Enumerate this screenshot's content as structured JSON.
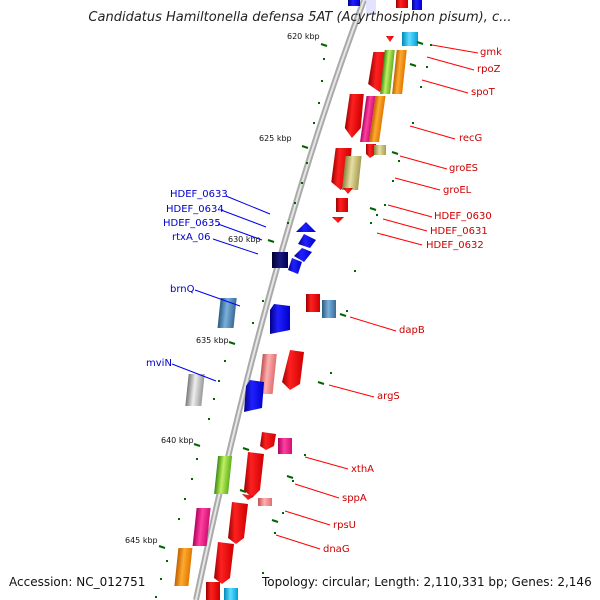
{
  "title": "Candidatus Hamiltonella defensa 5AT (Acyrthosiphon pisum), c...",
  "accession_label": "Accession:",
  "accession": "NC_012751",
  "topology_label": "Topology:",
  "topology": "circular;",
  "length_label": "Length:",
  "length": "2,110,331 bp;",
  "genes_label": "Genes:",
  "genes": "2,146",
  "ticks": [
    "620 kbp",
    "625 kbp",
    "630 kbp",
    "635 kbp",
    "640 kbp",
    "645 kbp"
  ],
  "genes_right": [
    "gmk",
    "rpoZ",
    "spoT",
    "recG",
    "groES",
    "groEL",
    "HDEF_0630",
    "HDEF_0631",
    "HDEF_0632",
    "dapB",
    "argS",
    "xthA",
    "sppA",
    "rpsU",
    "dnaG"
  ],
  "genes_left": [
    "HDEF_0633",
    "HDEF_0634",
    "HDEF_0635",
    "rtxA_06",
    "brnQ",
    "mviN"
  ],
  "colors": {
    "red": "#ff0000",
    "blue": "#0000ee",
    "navy": "#000066",
    "steel": "#4682b4",
    "pink": "#ff1493",
    "orange": "#ff8c00",
    "green": "#66cc33",
    "khaki": "#bdb76b",
    "light_red": "#f08080",
    "gray": "#aaaaaa",
    "cyan": "#00bfff",
    "tick": "#006400",
    "backbone": "#888888"
  }
}
